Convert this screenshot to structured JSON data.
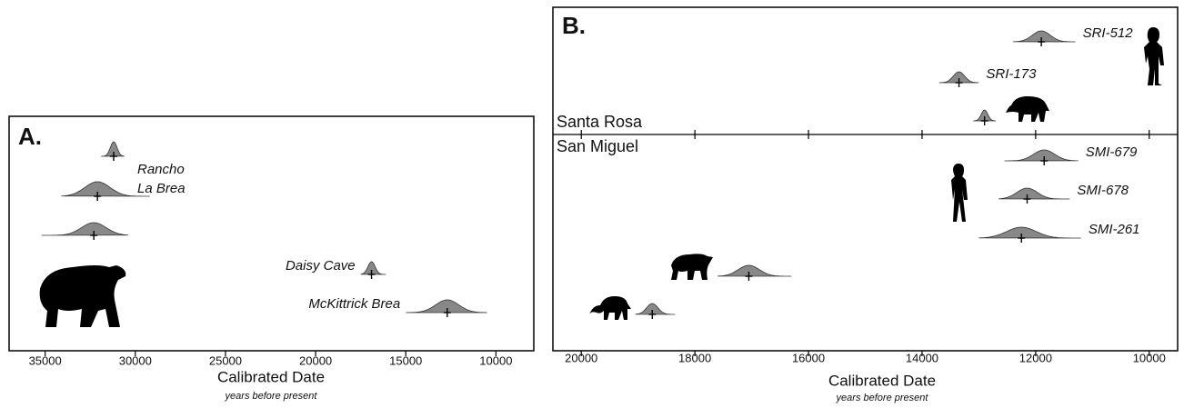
{
  "chart_data": [
    {
      "type": "distribution",
      "panel_label": "A.",
      "x_label": "Calibrated Date",
      "x_sublabel": "years before present",
      "xlim": [
        37000,
        7900
      ],
      "xticks": [
        35000,
        30000,
        25000,
        20000,
        15000,
        10000
      ],
      "annotations": [
        "Rancho",
        "La Brea"
      ],
      "categories": [
        null,
        null,
        null,
        "Daisy Cave",
        "McKittrick Brea"
      ],
      "values": [
        31200,
        32100,
        32300,
        16900,
        12700
      ],
      "ranges": [
        [
          31900,
          30600
        ],
        [
          34100,
          29200
        ],
        [
          35200,
          30400
        ],
        [
          17500,
          16100
        ],
        [
          15000,
          10500
        ]
      ],
      "color": "#888888"
    },
    {
      "type": "distribution",
      "panel_label": "B.",
      "x_label": "Calibrated Date",
      "x_sublabel": "years before present",
      "xlim": [
        20500,
        9500
      ],
      "xticks": [
        20000,
        18000,
        16000,
        14000,
        12000,
        10000
      ],
      "groups": [
        "Santa Rosa",
        "San Miguel"
      ],
      "categories": [
        "SRI-512",
        "SRI-173",
        null,
        "SMI-679",
        "SMI-678",
        "SMI-261",
        null,
        null
      ],
      "values": [
        11900,
        13350,
        12900,
        11850,
        12150,
        12250,
        17050,
        18750
      ],
      "ranges": [
        [
          12400,
          11300
        ],
        [
          13700,
          13000
        ],
        [
          13100,
          12700
        ],
        [
          12550,
          11250
        ],
        [
          12650,
          11400
        ],
        [
          13000,
          11200
        ],
        [
          17600,
          16300
        ],
        [
          19050,
          18350
        ]
      ],
      "color": "#888888"
    }
  ]
}
